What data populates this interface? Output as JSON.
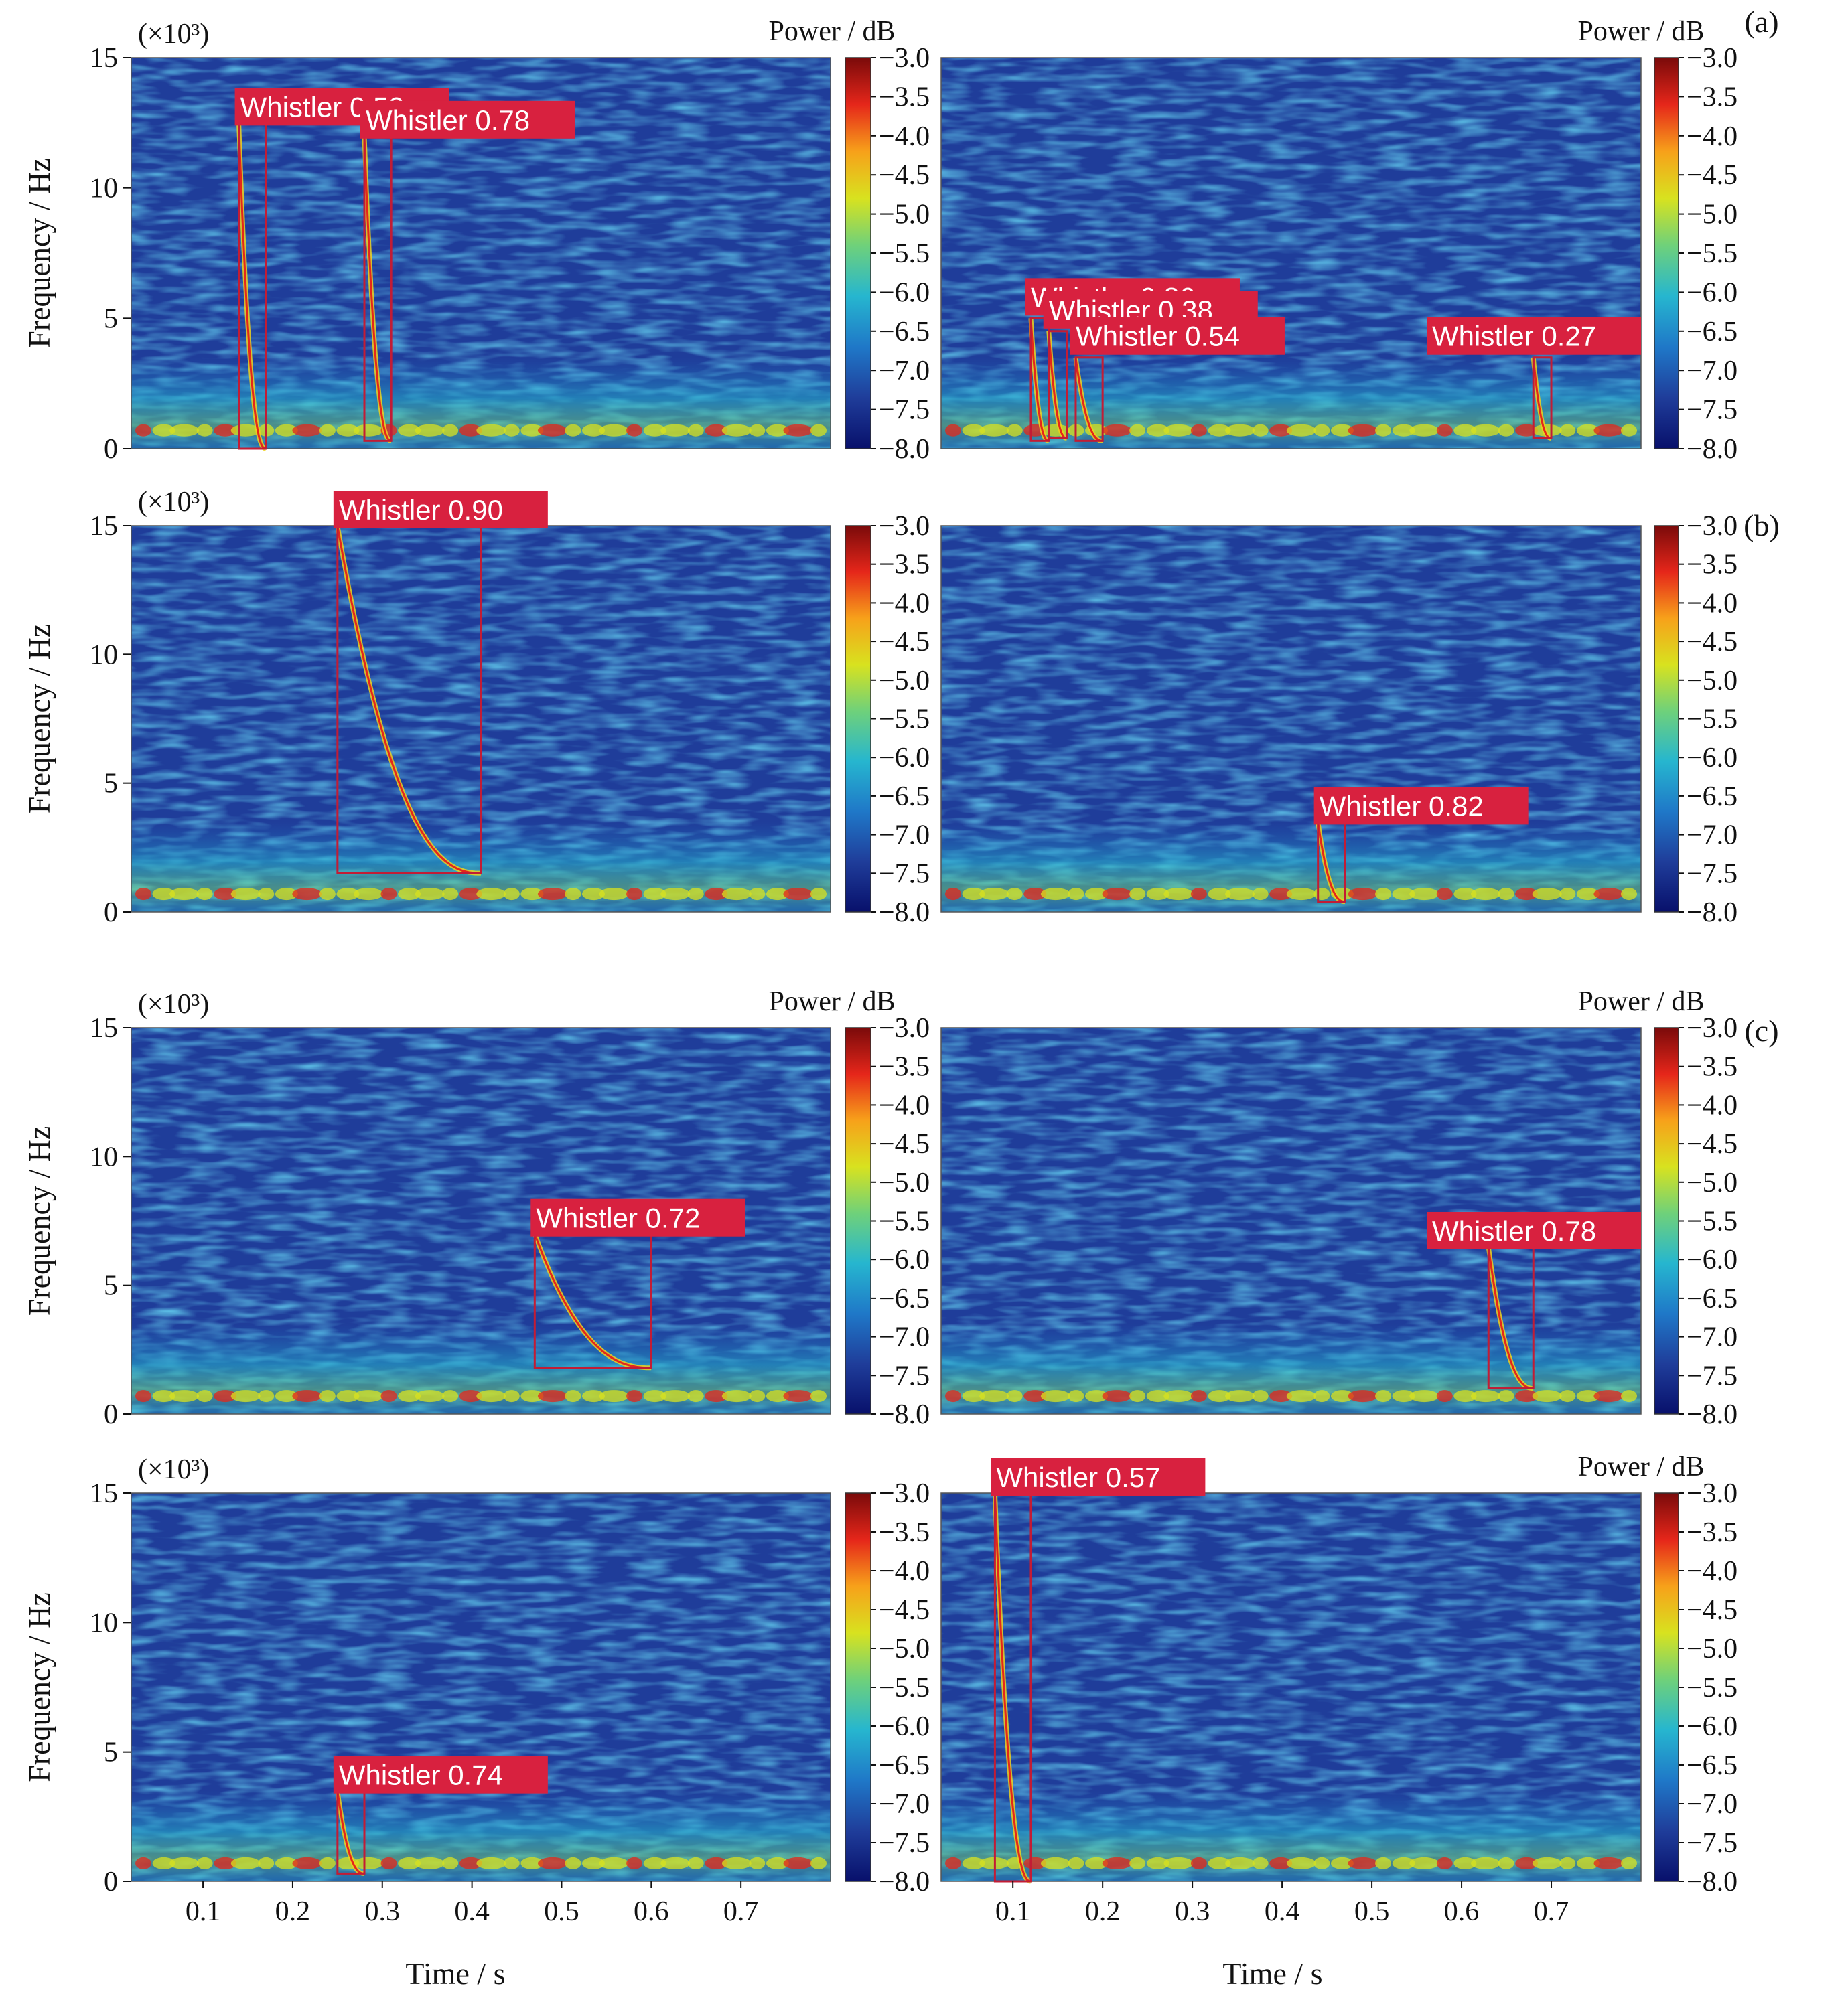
{
  "figure": {
    "panel_labels": [
      "(a)",
      "(b)",
      "(c)"
    ],
    "frequency_multiplier": "(×10³)",
    "ylabel": "Frequency / Hz",
    "xlabel": "Time / s",
    "colorbar_label": "Power / dB",
    "colorbar_ticks": [
      "−3.0",
      "−3.5",
      "−4.0",
      "−4.5",
      "−5.0",
      "−5.5",
      "−6.0",
      "−6.5",
      "−7.0",
      "−7.5",
      "−8.0"
    ]
  },
  "colors": {
    "background_blue": "#1f3d9a",
    "colormap": [
      "#08106b",
      "#1f3d9a",
      "#1f78c8",
      "#26b6cf",
      "#6fd17a",
      "#d8e21f",
      "#f7a11a",
      "#e5261a",
      "#7a0a0a"
    ],
    "box": "#c21c35",
    "label_bg": "#d8213f"
  },
  "chart_data": [
    {
      "type": "heatmap",
      "panel": "a",
      "column": "left",
      "title": "",
      "xlabel": "",
      "ylabel": "Frequency / Hz",
      "xlim": [
        0.02,
        0.8
      ],
      "ylim": [
        0,
        15000
      ],
      "yticks": [
        0,
        5,
        10,
        15
      ],
      "xticks": [],
      "colorbar": {
        "label": "Power / dB",
        "range": [
          -8.0,
          -3.0
        ]
      },
      "detections": [
        {
          "label": "Whistler 0.59",
          "confidence": 0.59,
          "t_start": 0.14,
          "t_end": 0.17,
          "f_low": 0,
          "f_high": 12500
        },
        {
          "label": "Whistler 0.78",
          "confidence": 0.78,
          "t_start": 0.28,
          "t_end": 0.31,
          "f_low": 300,
          "f_high": 12000
        }
      ]
    },
    {
      "type": "heatmap",
      "panel": "a",
      "column": "right",
      "title": "",
      "xlabel": "",
      "ylabel": "",
      "xlim": [
        0.02,
        0.8
      ],
      "ylim": [
        0,
        15000
      ],
      "yticks": [],
      "xticks": [],
      "colorbar": {
        "label": "Power / dB",
        "range": [
          -8.0,
          -3.0
        ]
      },
      "detections": [
        {
          "label": "Whistler 0.86",
          "confidence": 0.86,
          "t_start": 0.12,
          "t_end": 0.14,
          "f_low": 300,
          "f_high": 5000
        },
        {
          "label": "Whistler 0.38",
          "confidence": 0.38,
          "t_start": 0.14,
          "t_end": 0.16,
          "f_low": 400,
          "f_high": 4500
        },
        {
          "label": "Whistler 0.54",
          "confidence": 0.54,
          "t_start": 0.17,
          "t_end": 0.2,
          "f_low": 300,
          "f_high": 3500
        },
        {
          "label": "Whistler 0.27",
          "confidence": 0.27,
          "t_start": 0.68,
          "t_end": 0.7,
          "f_low": 400,
          "f_high": 3500
        }
      ]
    },
    {
      "type": "heatmap",
      "panel": "b",
      "column": "left",
      "title": "",
      "xlabel": "",
      "ylabel": "Frequency / Hz",
      "xlim": [
        0.02,
        0.8
      ],
      "ylim": [
        0,
        15000
      ],
      "yticks": [
        0,
        5,
        10,
        15
      ],
      "xticks": [],
      "colorbar": {
        "label": "",
        "range": [
          -8.0,
          -3.0
        ]
      },
      "detections": [
        {
          "label": "Whistler 0.90",
          "confidence": 0.9,
          "t_start": 0.25,
          "t_end": 0.41,
          "f_low": 1500,
          "f_high": 15000
        }
      ]
    },
    {
      "type": "heatmap",
      "panel": "b",
      "column": "right",
      "title": "",
      "xlabel": "",
      "ylabel": "",
      "xlim": [
        0.02,
        0.8
      ],
      "ylim": [
        0,
        15000
      ],
      "yticks": [],
      "xticks": [],
      "colorbar": {
        "label": "",
        "range": [
          -8.0,
          -3.0
        ]
      },
      "detections": [
        {
          "label": "Whistler 0.82",
          "confidence": 0.82,
          "t_start": 0.44,
          "t_end": 0.47,
          "f_low": 400,
          "f_high": 3500
        }
      ]
    },
    {
      "type": "heatmap",
      "panel": "c",
      "column": "left",
      "title": "",
      "xlabel": "",
      "ylabel": "Frequency / Hz",
      "xlim": [
        0.02,
        0.8
      ],
      "ylim": [
        0,
        15000
      ],
      "yticks": [
        0,
        5,
        10,
        15
      ],
      "xticks": [],
      "colorbar": {
        "label": "Power / dB",
        "range": [
          -8.0,
          -3.0
        ]
      },
      "detections": [
        {
          "label": "Whistler 0.72",
          "confidence": 0.72,
          "t_start": 0.47,
          "t_end": 0.6,
          "f_low": 1800,
          "f_high": 7000
        }
      ]
    },
    {
      "type": "heatmap",
      "panel": "c",
      "column": "right",
      "title": "",
      "xlabel": "",
      "ylabel": "",
      "xlim": [
        0.02,
        0.8
      ],
      "ylim": [
        0,
        15000
      ],
      "yticks": [],
      "xticks": [],
      "colorbar": {
        "label": "Power / dB",
        "range": [
          -8.0,
          -3.0
        ]
      },
      "detections": [
        {
          "label": "Whistler 0.78",
          "confidence": 0.78,
          "t_start": 0.63,
          "t_end": 0.68,
          "f_low": 1000,
          "f_high": 6500
        }
      ]
    },
    {
      "type": "heatmap",
      "panel": "c",
      "column": "left",
      "title": "",
      "xlabel": "Time / s",
      "ylabel": "Frequency / Hz",
      "xlim": [
        0.02,
        0.8
      ],
      "ylim": [
        0,
        15000
      ],
      "yticks": [
        0,
        5,
        10,
        15
      ],
      "xticks": [
        0.1,
        0.2,
        0.3,
        0.4,
        0.5,
        0.6,
        0.7
      ],
      "colorbar": {
        "label": "",
        "range": [
          -8.0,
          -3.0
        ]
      },
      "detections": [
        {
          "label": "Whistler 0.74",
          "confidence": 0.74,
          "t_start": 0.25,
          "t_end": 0.28,
          "f_low": 300,
          "f_high": 3500
        }
      ]
    },
    {
      "type": "heatmap",
      "panel": "c",
      "column": "right",
      "title": "",
      "xlabel": "Time / s",
      "ylabel": "",
      "xlim": [
        0.02,
        0.8
      ],
      "ylim": [
        0,
        15000
      ],
      "yticks": [],
      "xticks": [
        0.1,
        0.2,
        0.3,
        0.4,
        0.5,
        0.6,
        0.7
      ],
      "colorbar": {
        "label": "Power / dB",
        "range": [
          -8.0,
          -3.0
        ]
      },
      "detections": [
        {
          "label": "Whistler 0.57",
          "confidence": 0.57,
          "t_start": 0.08,
          "t_end": 0.12,
          "f_low": 0,
          "f_high": 15000
        }
      ]
    }
  ]
}
